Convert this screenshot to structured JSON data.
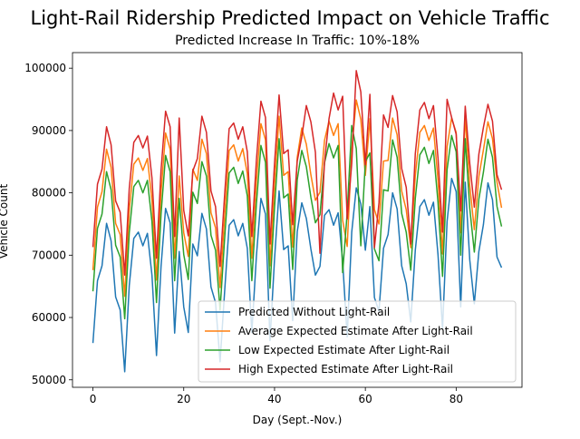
{
  "chart_data": {
    "type": "line",
    "title": "Light-Rail Ridership Predicted Impact on Vehicle Traffic",
    "subtitle": "Predicted Increase In Traffic: 10%-18%",
    "xlabel": "Day (Sept.-Nov.)",
    "ylabel": "Vehicle Count",
    "xlim": [
      -4.5,
      94.5
    ],
    "ylim": [
      48800,
      102500
    ],
    "xticks": [
      0,
      20,
      40,
      60,
      80
    ],
    "yticks": [
      50000,
      60000,
      70000,
      80000,
      90000,
      100000
    ],
    "xtick_labels": [
      "0",
      "20",
      "40",
      "60",
      "80"
    ],
    "ytick_labels": [
      "50000",
      "60000",
      "70000",
      "80000",
      "90000",
      "100000"
    ],
    "grid": false,
    "legend_position": "lower-right",
    "x": [
      0,
      1,
      2,
      3,
      4,
      5,
      6,
      7,
      8,
      9,
      10,
      11,
      12,
      13,
      14,
      15,
      16,
      17,
      18,
      19,
      20,
      21,
      22,
      23,
      24,
      25,
      26,
      27,
      28,
      29,
      30,
      31,
      32,
      33,
      34,
      35,
      36,
      37,
      38,
      39,
      40,
      41,
      42,
      43,
      44,
      45,
      46,
      47,
      48,
      49,
      50,
      51,
      52,
      53,
      54,
      55,
      56,
      57,
      58,
      59,
      60,
      61,
      62,
      63,
      64,
      65,
      66,
      67,
      68,
      69,
      70,
      71,
      72,
      73,
      74,
      75,
      76,
      77,
      78,
      79,
      80,
      81,
      82,
      83,
      84,
      85,
      86,
      87,
      88,
      89,
      90
    ],
    "series": [
      {
        "name": "Predicted Without Light-Rail",
        "color": "#1f77b4",
        "values": [
          55900,
          65900,
          68300,
          75100,
          72300,
          63300,
          61200,
          51300,
          65100,
          72700,
          73700,
          71500,
          73500,
          66800,
          53900,
          68200,
          77500,
          75200,
          57500,
          70600,
          61700,
          57600,
          71800,
          69900,
          76700,
          74200,
          64900,
          62400,
          52900,
          64100,
          74800,
          75700,
          73100,
          75100,
          71100,
          57600,
          69800,
          79100,
          76600,
          56300,
          69400,
          80300,
          70900,
          71500,
          59500,
          73800,
          78400,
          75900,
          71000,
          66800,
          68200,
          76400,
          77300,
          74800,
          76800,
          69000,
          56900,
          73700,
          80800,
          78200,
          70800,
          77800,
          63200,
          61000,
          71100,
          73300,
          80000,
          77400,
          68300,
          65400,
          59300,
          70800,
          77800,
          78900,
          76400,
          78500,
          70100,
          58200,
          75400,
          82300,
          80200,
          61700,
          81700,
          69200,
          62200,
          70600,
          74900,
          81600,
          78900,
          69700,
          68000
        ]
      },
      {
        "name": "Average Expected Estimate After Light-Rail",
        "color": "#ff7f0e",
        "values": [
          67600,
          77700,
          80200,
          87000,
          84100,
          75100,
          73300,
          63400,
          77200,
          84600,
          85600,
          83600,
          85500,
          78900,
          66000,
          80100,
          89600,
          87000,
          69500,
          82700,
          73600,
          69800,
          83800,
          82000,
          88600,
          86300,
          76800,
          74400,
          64800,
          76100,
          86800,
          87700,
          85100,
          87100,
          83100,
          69500,
          81800,
          91100,
          88500,
          68300,
          81300,
          92300,
          82800,
          83400,
          71300,
          85700,
          90400,
          87800,
          82900,
          78800,
          80100,
          88400,
          91500,
          89200,
          91100,
          75600,
          71400,
          87000,
          94900,
          91800,
          82800,
          91900,
          77300,
          75000,
          85100,
          85200,
          92000,
          89300,
          80300,
          77300,
          71200,
          82800,
          89700,
          90800,
          88400,
          90400,
          82100,
          70200,
          87400,
          92000,
          89700,
          73600,
          92200,
          81100,
          74100,
          82600,
          86900,
          91400,
          88700,
          81700,
          77600
        ]
      },
      {
        "name": "Low Expected Estimate After Light-Rail",
        "color": "#2ca02c",
        "values": [
          64200,
          74300,
          76600,
          83400,
          80500,
          71600,
          69700,
          59800,
          73600,
          81000,
          82000,
          80000,
          82000,
          75400,
          62400,
          76600,
          86000,
          83400,
          65900,
          79100,
          70100,
          66100,
          80100,
          78300,
          85000,
          82700,
          73200,
          70800,
          61200,
          72600,
          83200,
          84100,
          81500,
          83500,
          79500,
          65900,
          78200,
          87600,
          84900,
          64700,
          77700,
          88700,
          79200,
          79800,
          67700,
          82100,
          86800,
          84200,
          79300,
          75200,
          76500,
          84800,
          87900,
          85600,
          87600,
          67200,
          76800,
          90800,
          87100,
          71500,
          85000,
          86400,
          71000,
          69100,
          80500,
          80300,
          88500,
          85700,
          76700,
          73700,
          67600,
          79100,
          86100,
          87300,
          84700,
          86800,
          78500,
          66600,
          83700,
          89200,
          86600,
          70000,
          88700,
          77500,
          70500,
          79000,
          83300,
          88600,
          85700,
          77800,
          74600
        ]
      },
      {
        "name": "High Expected Estimate After Light-Rail",
        "color": "#d62728",
        "values": [
          71300,
          81400,
          83800,
          90600,
          87700,
          78700,
          76900,
          66800,
          80700,
          88100,
          89200,
          87200,
          89100,
          82400,
          69500,
          83600,
          93100,
          90600,
          73000,
          92000,
          77200,
          73100,
          83500,
          85500,
          92300,
          89700,
          80300,
          77800,
          68200,
          79600,
          90300,
          91200,
          88600,
          90600,
          86600,
          73000,
          85200,
          94700,
          92100,
          71800,
          84800,
          95700,
          86300,
          86900,
          74900,
          85100,
          89000,
          94000,
          91400,
          86500,
          70300,
          84900,
          91900,
          96000,
          93300,
          95500,
          75800,
          84700,
          99600,
          96200,
          84500,
          95800,
          71200,
          78400,
          92500,
          90500,
          95600,
          93000,
          83900,
          80900,
          71800,
          86300,
          93300,
          94500,
          91900,
          94000,
          85600,
          73700,
          95000,
          92100,
          89400,
          77100,
          93900,
          84700,
          77700,
          86200,
          90500,
          94200,
          91500,
          82900,
          80500
        ]
      }
    ]
  }
}
